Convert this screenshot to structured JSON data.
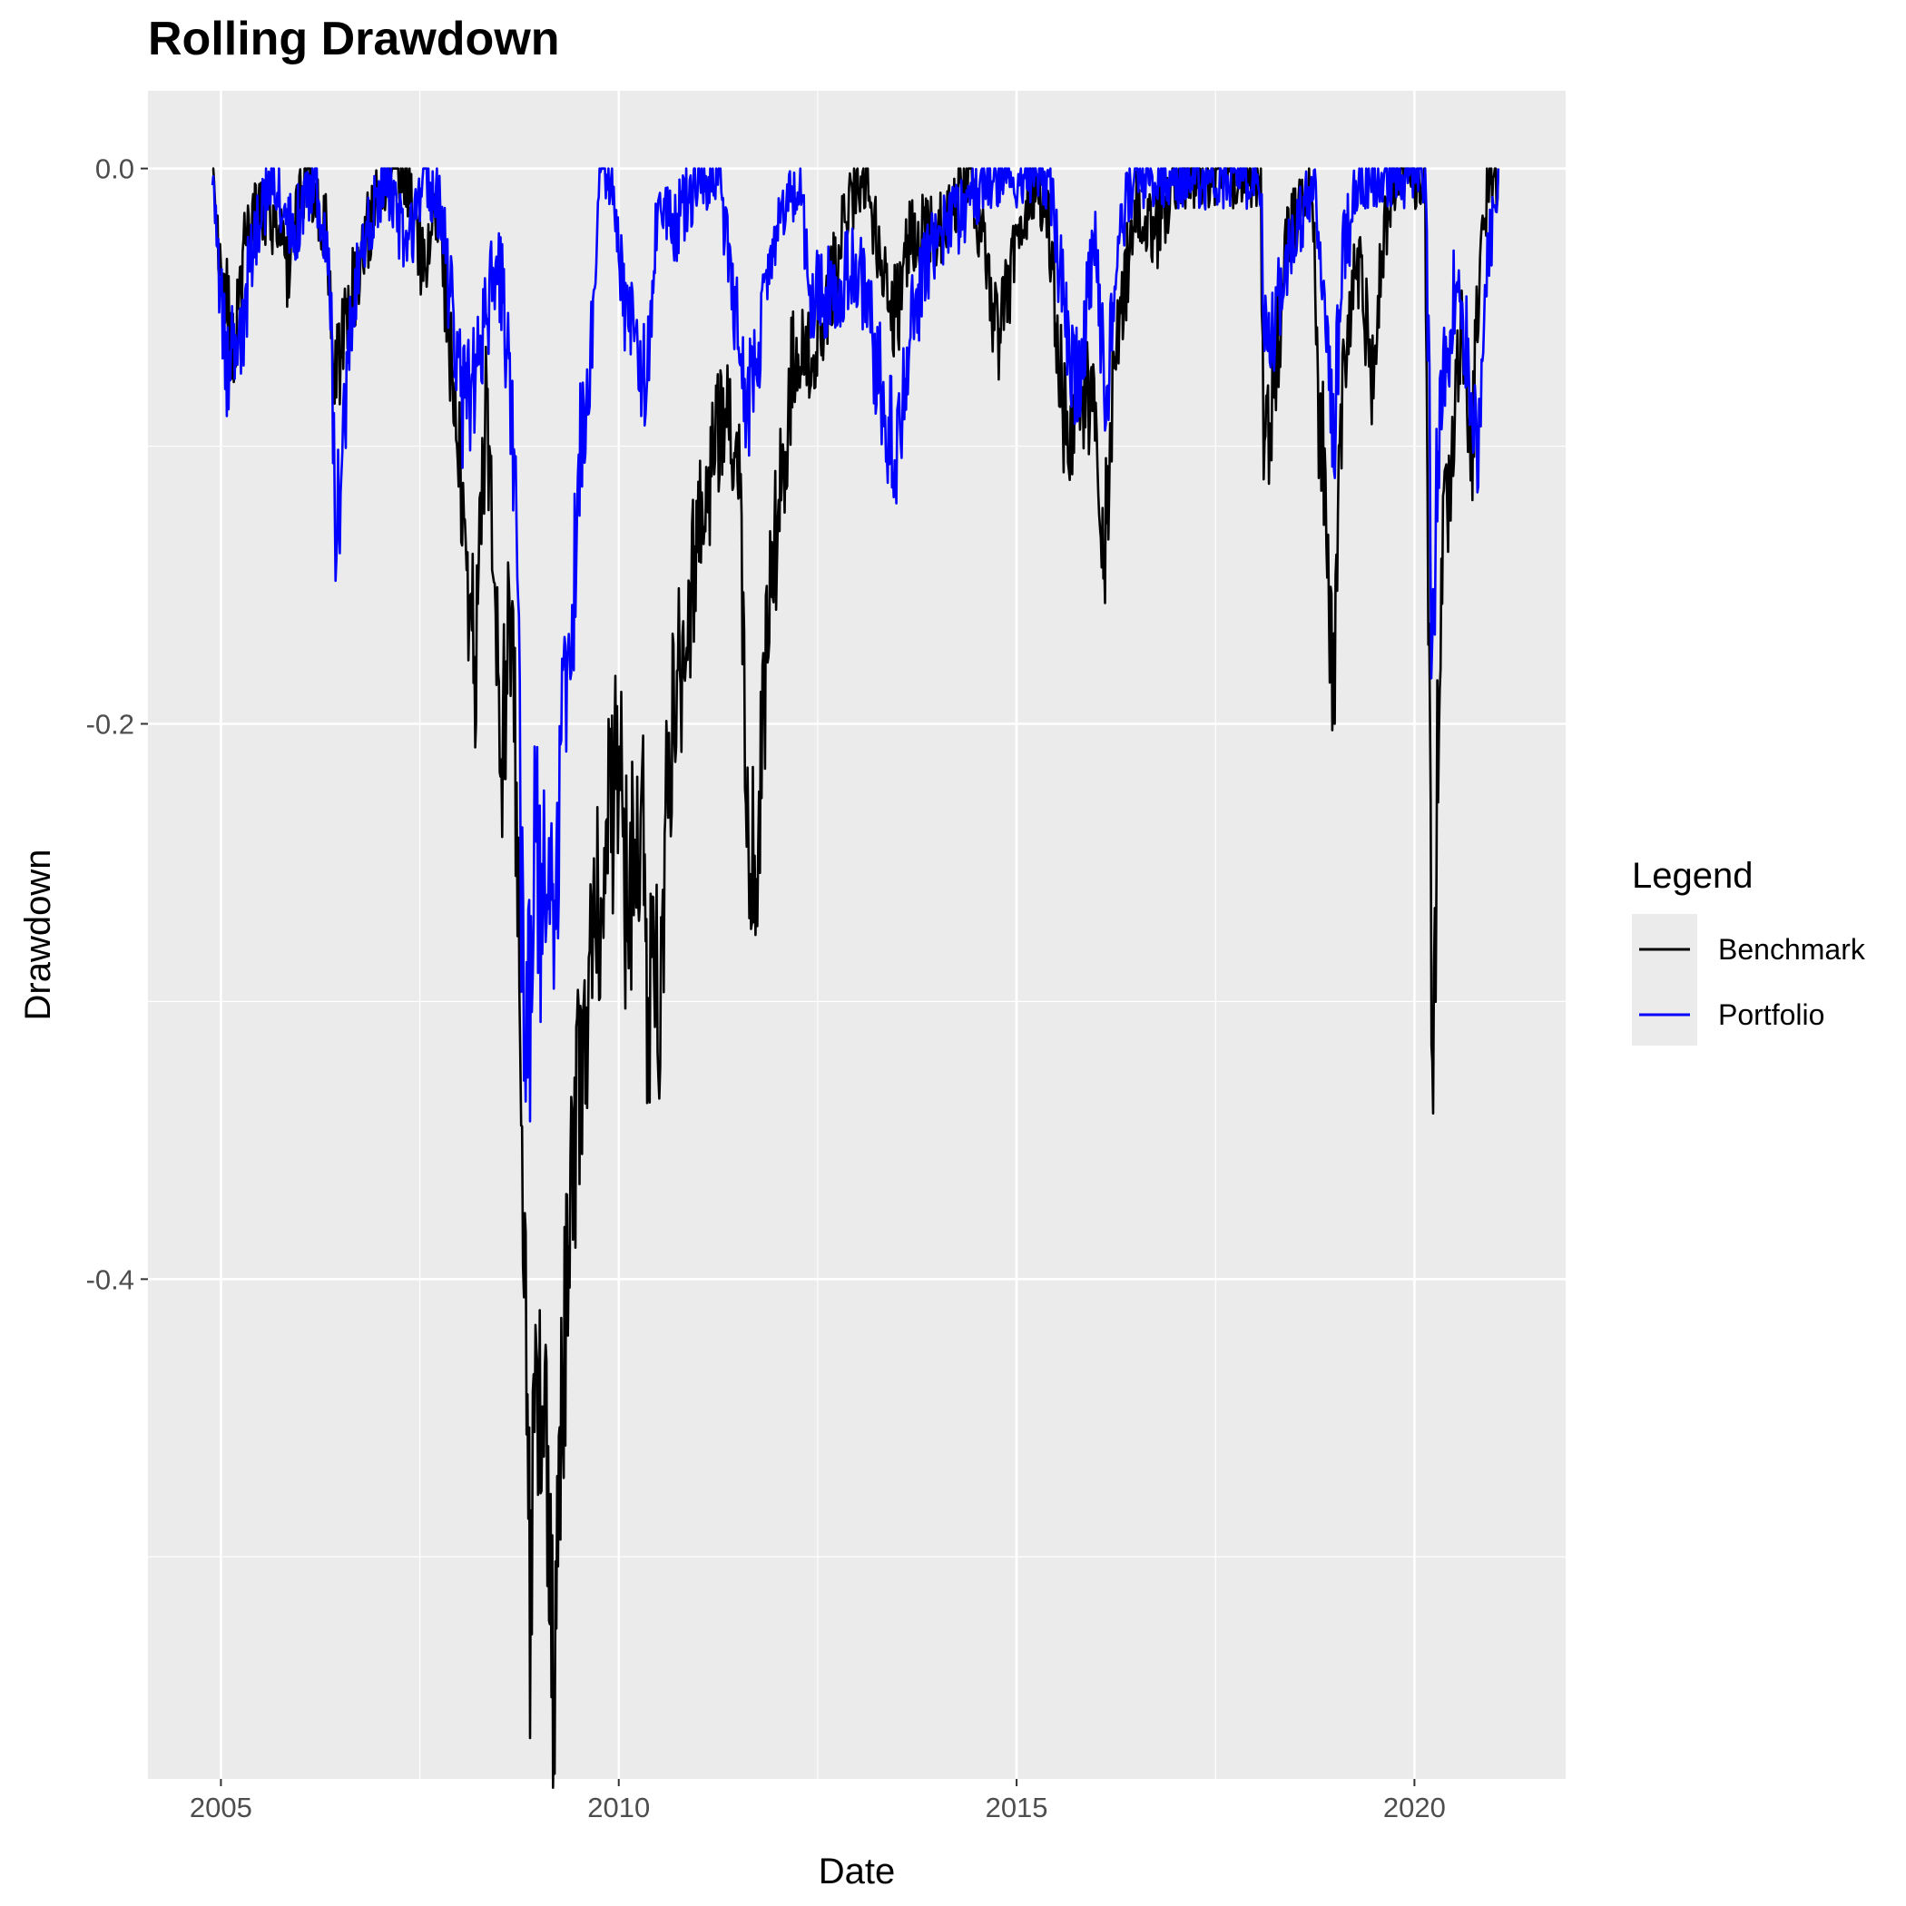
{
  "chart_data": {
    "type": "line",
    "title": "Rolling Drawdown",
    "xlabel": "Date",
    "ylabel": "Drawdown",
    "x_ticks": [
      "2005",
      "2010",
      "2015",
      "2020"
    ],
    "y_ticks": [
      "0.0",
      "-0.2",
      "-0.4"
    ],
    "xlim": [
      "2004-02-01",
      "2021-11-25"
    ],
    "ylim": [
      -0.58,
      0.028
    ],
    "y_major_ticks": [
      0.0,
      -0.2,
      -0.4
    ],
    "y_minor_gridlines": [
      -0.1,
      -0.3,
      -0.5
    ],
    "grid": true,
    "background": "#ebebeb",
    "legend": {
      "title": "Legend",
      "position": "right",
      "entries": [
        "Benchmark",
        "Portfolio"
      ]
    },
    "series": [
      {
        "name": "Benchmark",
        "color": "#000000",
        "x": [
          "2004-11-23",
          "2005-01-01",
          "2005-03-01",
          "2005-05-01",
          "2005-08-01",
          "2005-11-01",
          "2006-02-01",
          "2006-05-01",
          "2006-06-15",
          "2006-08-01",
          "2006-11-01",
          "2007-02-01",
          "2007-05-01",
          "2007-07-15",
          "2007-10-01",
          "2007-11-15",
          "2008-01-01",
          "2008-02-15",
          "2008-03-17",
          "2008-05-01",
          "2008-06-15",
          "2008-07-15",
          "2008-08-15",
          "2008-09-15",
          "2008-10-10",
          "2008-10-27",
          "2008-11-20",
          "2008-12-15",
          "2009-01-15",
          "2009-02-15",
          "2009-03-09",
          "2009-04-01",
          "2009-05-01",
          "2009-06-01",
          "2009-07-01",
          "2009-08-01",
          "2009-09-01",
          "2009-10-15",
          "2009-12-01",
          "2010-01-01",
          "2010-02-08",
          "2010-04-23",
          "2010-05-15",
          "2010-07-02",
          "2010-09-01",
          "2010-11-01",
          "2011-01-01",
          "2011-03-15",
          "2011-04-29",
          "2011-06-15",
          "2011-07-15",
          "2011-08-15",
          "2011-10-03",
          "2011-11-15",
          "2012-01-01",
          "2012-03-15",
          "2012-06-01",
          "2012-09-01",
          "2012-11-15",
          "2013-02-01",
          "2013-06-24",
          "2013-09-01",
          "2014-01-01",
          "2014-03-01",
          "2014-06-01",
          "2014-10-15",
          "2015-01-01",
          "2015-04-01",
          "2015-06-01",
          "2015-08-25",
          "2015-10-15",
          "2015-12-15",
          "2016-02-11",
          "2016-04-01",
          "2016-07-01",
          "2016-10-01",
          "2017-01-01",
          "2017-06-01",
          "2017-09-01",
          "2018-01-26",
          "2018-02-08",
          "2018-04-01",
          "2018-06-01",
          "2018-09-20",
          "2018-10-15",
          "2018-11-15",
          "2018-12-24",
          "2019-01-15",
          "2019-03-01",
          "2019-05-01",
          "2019-06-15",
          "2019-08-15",
          "2019-10-15",
          "2020-01-01",
          "2020-02-19",
          "2020-03-01",
          "2020-03-23",
          "2020-04-15",
          "2020-05-15",
          "2020-06-15",
          "2020-08-01",
          "2020-09-23",
          "2020-11-01",
          "2020-12-15",
          "2021-01-20"
        ],
        "values": [
          0.0,
          -0.03,
          -0.06,
          -0.02,
          -0.01,
          -0.03,
          0.0,
          -0.02,
          -0.07,
          -0.05,
          -0.02,
          0.0,
          0.0,
          -0.03,
          -0.01,
          -0.06,
          -0.09,
          -0.16,
          -0.17,
          -0.08,
          -0.14,
          -0.2,
          -0.15,
          -0.21,
          -0.3,
          -0.37,
          -0.51,
          -0.43,
          -0.44,
          -0.48,
          -0.55,
          -0.47,
          -0.41,
          -0.36,
          -0.31,
          -0.28,
          -0.27,
          -0.25,
          -0.22,
          -0.2,
          -0.26,
          -0.22,
          -0.3,
          -0.28,
          -0.19,
          -0.16,
          -0.13,
          -0.1,
          -0.08,
          -0.09,
          -0.12,
          -0.22,
          -0.23,
          -0.15,
          -0.12,
          -0.06,
          -0.06,
          -0.04,
          -0.01,
          0.0,
          -0.05,
          -0.02,
          -0.02,
          -0.01,
          0.0,
          -0.06,
          -0.02,
          0.0,
          -0.02,
          -0.1,
          -0.07,
          -0.08,
          -0.13,
          -0.06,
          -0.01,
          -0.02,
          0.0,
          0.0,
          0.0,
          0.0,
          -0.1,
          -0.07,
          -0.02,
          0.0,
          -0.08,
          -0.1,
          -0.2,
          -0.11,
          -0.05,
          -0.03,
          -0.07,
          -0.02,
          0.0,
          0.0,
          0.0,
          -0.11,
          -0.34,
          -0.2,
          -0.13,
          -0.1,
          -0.05,
          -0.09,
          -0.02,
          0.0,
          0.0
        ]
      },
      {
        "name": "Portfolio",
        "color": "#0000ff",
        "x": [
          "2004-11-23",
          "2005-01-01",
          "2005-02-01",
          "2005-04-15",
          "2005-06-01",
          "2005-09-01",
          "2005-12-01",
          "2006-03-01",
          "2006-05-15",
          "2006-06-15",
          "2006-08-01",
          "2006-10-15",
          "2007-02-01",
          "2007-05-01",
          "2007-07-15",
          "2007-10-01",
          "2007-12-01",
          "2008-01-15",
          "2008-03-17",
          "2008-05-01",
          "2008-06-15",
          "2008-07-15",
          "2008-08-15",
          "2008-09-15",
          "2008-10-15",
          "2008-11-20",
          "2008-12-15",
          "2009-01-15",
          "2009-02-15",
          "2009-03-09",
          "2009-04-01",
          "2009-05-01",
          "2009-06-01",
          "2009-07-01",
          "2009-08-01",
          "2009-09-01",
          "2009-10-01",
          "2009-12-01",
          "2010-02-01",
          "2010-05-20",
          "2010-07-01",
          "2010-09-01",
          "2011-01-01",
          "2011-04-01",
          "2011-08-10",
          "2011-10-01",
          "2012-01-01",
          "2012-04-01",
          "2012-06-01",
          "2012-09-01",
          "2013-01-01",
          "2013-06-24",
          "2013-09-01",
          "2014-01-01",
          "2014-06-01",
          "2014-10-15",
          "2015-01-01",
          "2015-06-01",
          "2015-08-25",
          "2015-10-15",
          "2016-01-01",
          "2016-02-11",
          "2016-04-15",
          "2016-07-01",
          "2016-10-01",
          "2017-06-01",
          "2017-10-01",
          "2018-01-26",
          "2018-02-08",
          "2018-04-01",
          "2018-07-01",
          "2018-10-01",
          "2018-11-15",
          "2018-12-24",
          "2019-02-01",
          "2019-05-01",
          "2019-08-15",
          "2019-12-01",
          "2020-02-19",
          "2020-03-10",
          "2020-03-23",
          "2020-04-15",
          "2020-06-01",
          "2020-07-15",
          "2020-09-23",
          "2020-10-20",
          "2020-12-01",
          "2021-01-20"
        ],
        "values": [
          0.0,
          -0.04,
          -0.07,
          -0.05,
          -0.02,
          0.0,
          -0.02,
          0.0,
          -0.03,
          -0.13,
          -0.07,
          -0.02,
          0.0,
          -0.03,
          0.0,
          -0.01,
          -0.05,
          -0.08,
          -0.07,
          -0.05,
          -0.03,
          -0.04,
          -0.07,
          -0.12,
          -0.26,
          -0.3,
          -0.23,
          -0.26,
          -0.25,
          -0.28,
          -0.22,
          -0.18,
          -0.16,
          -0.1,
          -0.08,
          -0.05,
          0.0,
          0.0,
          -0.05,
          -0.07,
          0.0,
          -0.02,
          0.0,
          0.0,
          -0.08,
          -0.06,
          -0.02,
          0.0,
          -0.04,
          -0.04,
          -0.03,
          -0.1,
          -0.05,
          -0.02,
          -0.01,
          0.0,
          0.0,
          0.0,
          -0.06,
          -0.07,
          -0.02,
          -0.08,
          -0.02,
          0.0,
          0.0,
          0.0,
          0.0,
          0.0,
          -0.06,
          -0.05,
          -0.02,
          0.0,
          -0.05,
          -0.1,
          -0.03,
          0.0,
          0.0,
          0.0,
          0.0,
          -0.08,
          -0.18,
          -0.1,
          -0.06,
          -0.03,
          -0.08,
          -0.09,
          -0.03,
          0.0
        ]
      }
    ]
  }
}
